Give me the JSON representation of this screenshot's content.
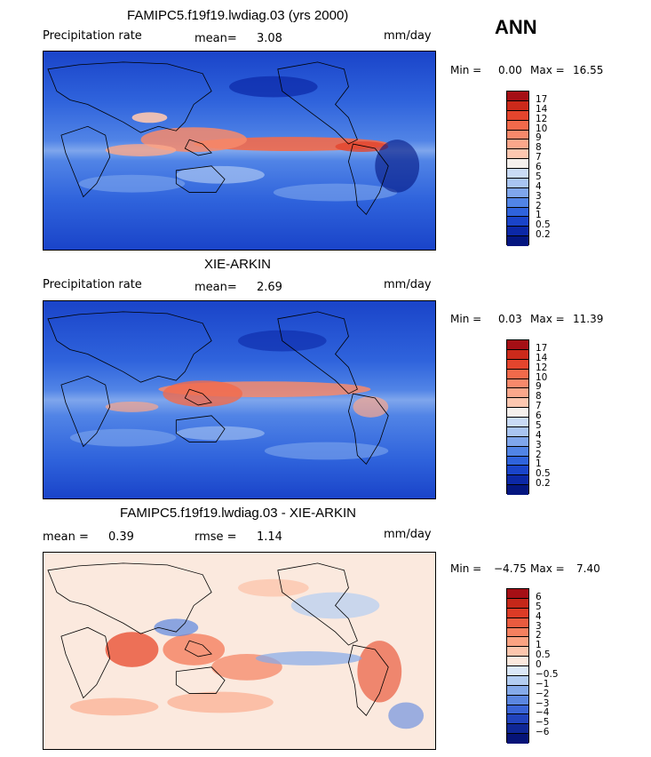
{
  "season": "ANN",
  "panels": [
    {
      "title": "FAMIPC5.f19f19.lwdiag.03 (yrs 2000)",
      "left_label": "Precipitation rate",
      "stat1_label": "mean=",
      "stat1_value": "3.08",
      "stat2_label": "",
      "stat2_value": "",
      "units": "mm/day",
      "min_label": "Min =",
      "min_value": "0.00",
      "max_label": "Max =",
      "max_value": "16.55",
      "colorbar_ticks": [
        "17",
        "14",
        "12",
        "10",
        "9",
        "8",
        "7",
        "6",
        "5",
        "4",
        "3",
        "2",
        "1",
        "0.5",
        "0.2"
      ],
      "colorbar_colors": [
        "#a50f15",
        "#cb2a1b",
        "#e4452d",
        "#f26a4b",
        "#f7896b",
        "#fba78b",
        "#fdc7b0",
        "#f5f0ec",
        "#c9dbf6",
        "#a9c5f2",
        "#7fa6ec",
        "#5184e6",
        "#2f63dc",
        "#1a44c9",
        "#0c28a6",
        "#041680"
      ]
    },
    {
      "title": "XIE-ARKIN",
      "left_label": "Precipitation rate",
      "stat1_label": "mean=",
      "stat1_value": "2.69",
      "stat2_label": "",
      "stat2_value": "",
      "units": "mm/day",
      "min_label": "Min =",
      "min_value": "0.03",
      "max_label": "Max =",
      "max_value": "11.39",
      "colorbar_ticks": [
        "17",
        "14",
        "12",
        "10",
        "9",
        "8",
        "7",
        "6",
        "5",
        "4",
        "3",
        "2",
        "1",
        "0.5",
        "0.2"
      ],
      "colorbar_colors": [
        "#a50f15",
        "#cb2a1b",
        "#e4452d",
        "#f26a4b",
        "#f7896b",
        "#fba78b",
        "#fdc7b0",
        "#f5f0ec",
        "#c9dbf6",
        "#a9c5f2",
        "#7fa6ec",
        "#5184e6",
        "#2f63dc",
        "#1a44c9",
        "#0c28a6",
        "#041680"
      ]
    },
    {
      "title": "FAMIPC5.f19f19.lwdiag.03 - XIE-ARKIN",
      "left_label": "",
      "stat1_label": "mean =",
      "stat1_value": "0.39",
      "stat2_label": "rmse =",
      "stat2_value": "1.14",
      "units": "mm/day",
      "min_label": "Min =",
      "min_value": "−4.75",
      "max_label": "Max =",
      "max_value": "7.40",
      "colorbar_ticks": [
        "6",
        "5",
        "4",
        "3",
        "2",
        "1",
        "0.5",
        "0",
        "−0.5",
        "−1",
        "−2",
        "−3",
        "−4",
        "−5",
        "−6"
      ],
      "colorbar_colors": [
        "#a50f15",
        "#c52719",
        "#dc3b26",
        "#ea5b3f",
        "#f5805f",
        "#fba382",
        "#fdc6ad",
        "#fbe9de",
        "#dbe8f8",
        "#b3cdf2",
        "#85aaea",
        "#5b86e0",
        "#3a64d6",
        "#2143bd",
        "#0f2796",
        "#061478"
      ]
    }
  ]
}
